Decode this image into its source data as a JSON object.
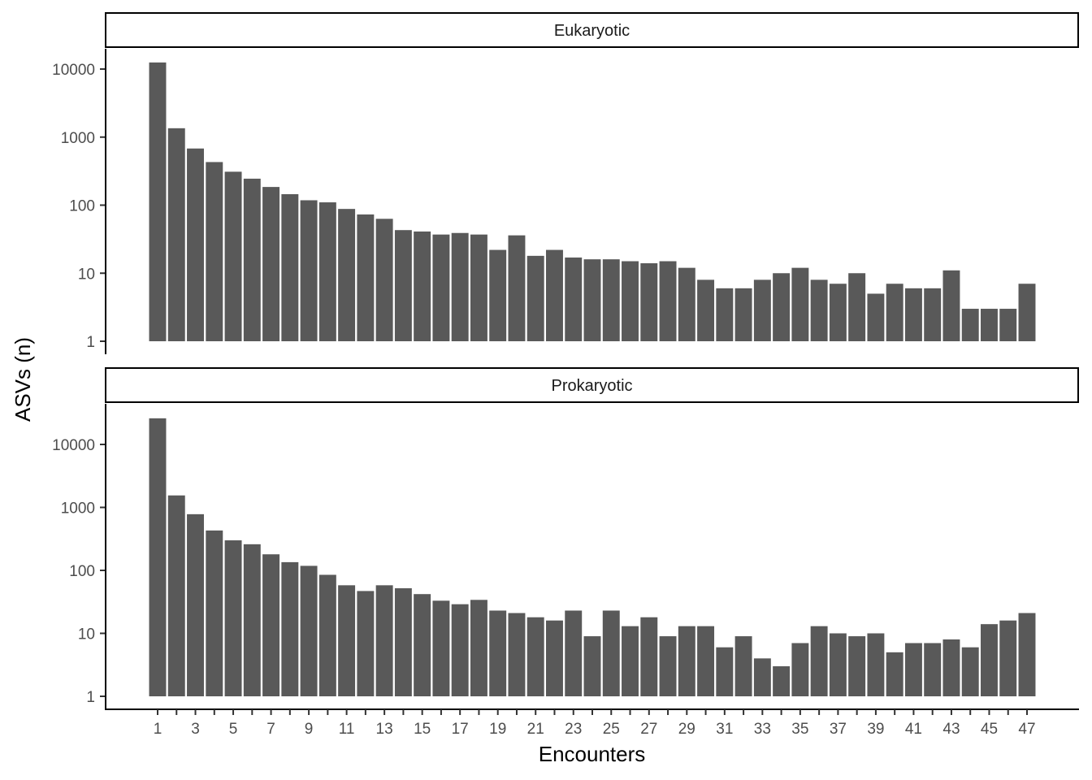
{
  "chart_data": {
    "type": "bar",
    "xlabel": "Encounters",
    "ylabel": "ASVs (n)",
    "y_scale": "log10",
    "y_ticks": [
      1,
      10,
      100,
      1000,
      10000
    ],
    "y_tick_labels": [
      "1",
      "10",
      "100",
      "1000",
      "10000"
    ],
    "x_tick_labels": [
      "1",
      "3",
      "5",
      "7",
      "9",
      "11",
      "13",
      "15",
      "17",
      "19",
      "21",
      "23",
      "25",
      "27",
      "29",
      "31",
      "33",
      "35",
      "37",
      "39",
      "41",
      "43",
      "45",
      "47"
    ],
    "categories": [
      1,
      2,
      3,
      4,
      5,
      6,
      7,
      8,
      9,
      10,
      11,
      12,
      13,
      14,
      15,
      16,
      17,
      18,
      19,
      20,
      21,
      22,
      23,
      24,
      25,
      26,
      27,
      28,
      29,
      30,
      31,
      32,
      33,
      34,
      35,
      36,
      37,
      38,
      39,
      40,
      41,
      42,
      43,
      44,
      45,
      46,
      47
    ],
    "bar_color": "#595959",
    "panels": [
      {
        "name": "Eukaryotic",
        "ylim": [
          0.7,
          20000
        ],
        "values": [
          12500,
          1350,
          680,
          430,
          310,
          245,
          185,
          145,
          118,
          110,
          88,
          73,
          63,
          43,
          41,
          37,
          39,
          37,
          22,
          36,
          18,
          22,
          17,
          16,
          16,
          15,
          14,
          15,
          12,
          8,
          6,
          6,
          8,
          10,
          12,
          8,
          7,
          10,
          5,
          7,
          6,
          6,
          11,
          3,
          3,
          3,
          7
        ]
      },
      {
        "name": "Prokaryotic",
        "ylim": [
          0.7,
          40000
        ],
        "values": [
          26000,
          1550,
          780,
          430,
          300,
          260,
          180,
          135,
          118,
          85,
          58,
          47,
          58,
          52,
          42,
          33,
          29,
          34,
          23,
          21,
          18,
          16,
          23,
          9,
          23,
          13,
          18,
          9,
          13,
          13,
          6,
          9,
          4,
          3,
          7,
          13,
          10,
          9,
          10,
          5,
          7,
          7,
          8,
          6,
          14,
          16,
          21
        ]
      }
    ]
  }
}
